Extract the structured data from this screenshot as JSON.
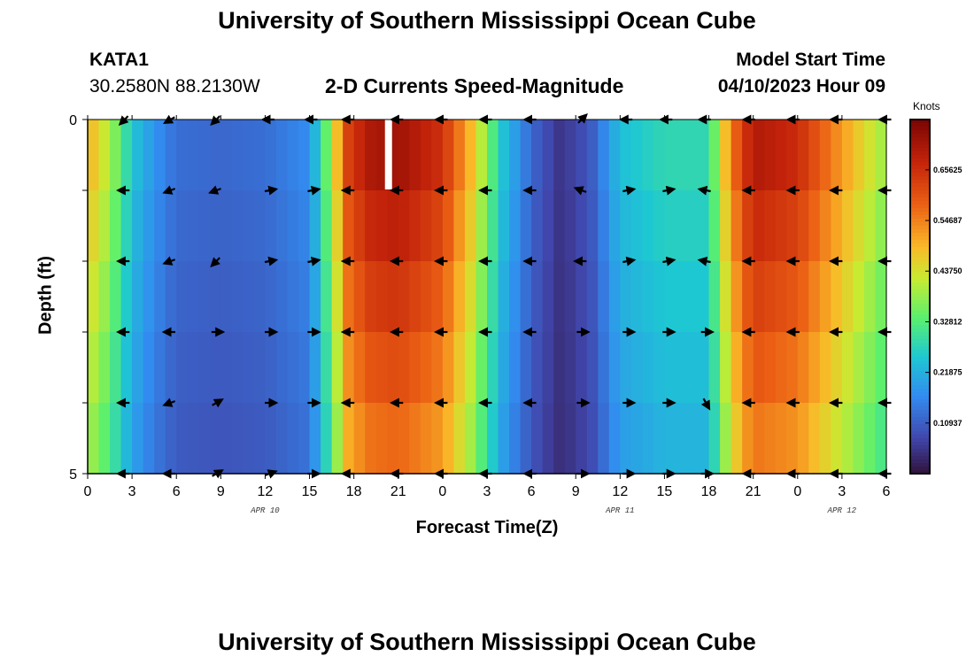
{
  "page": {
    "title": "University of Southern Mississippi Ocean Cube",
    "footer_title": "University of Southern Mississippi Ocean Cube",
    "station": "KATA1",
    "coords": "30.2580N  88.2130W",
    "subtitle": "2-D Currents Speed-Magnitude",
    "model_start_label": "Model Start Time",
    "model_start_value": "04/10/2023 Hour 09"
  },
  "chart_data": {
    "type": "heatmap",
    "title": "2-D Currents Speed-Magnitude",
    "xlabel": "Forecast Time(Z)",
    "ylabel": "Depth (ft)",
    "x_tick_labels": [
      "0",
      "3",
      "6",
      "9",
      "12",
      "15",
      "18",
      "21",
      "0",
      "3",
      "6",
      "9",
      "12",
      "15",
      "18",
      "21",
      "0",
      "3",
      "6"
    ],
    "x_hours": [
      0,
      3,
      6,
      9,
      12,
      15,
      18,
      21,
      24,
      27,
      30,
      33,
      36,
      39,
      42,
      45,
      48,
      51,
      54
    ],
    "xlim": [
      0,
      54
    ],
    "date_labels": [
      {
        "text": "APR 10",
        "hour": 12
      },
      {
        "text": "APR 11",
        "hour": 36
      },
      {
        "text": "APR 12",
        "hour": 51
      }
    ],
    "y_tick_labels": [
      "0",
      "5"
    ],
    "ylim": [
      0,
      5
    ],
    "depth_levels": [
      0,
      1,
      2,
      3,
      4,
      5
    ],
    "colorbar": {
      "unit": "Knots",
      "ticks": [
        0.65625,
        0.54687,
        0.4375,
        0.32812,
        0.21875,
        0.10937
      ],
      "tick_labels": [
        "0.65625",
        "0.54687",
        "0.43750",
        "0.32812",
        "0.21875",
        "0.10937"
      ],
      "range": [
        0,
        0.765
      ]
    },
    "speed_profile": [
      {
        "hour": 0,
        "knots": 0.5
      },
      {
        "hour": 1.5,
        "knots": 0.4
      },
      {
        "hour": 3,
        "knots": 0.25
      },
      {
        "hour": 4.5,
        "knots": 0.18
      },
      {
        "hour": 6,
        "knots": 0.13
      },
      {
        "hour": 9,
        "knots": 0.12
      },
      {
        "hour": 12,
        "knots": 0.13
      },
      {
        "hour": 15,
        "knots": 0.17
      },
      {
        "hour": 16.5,
        "knots": 0.4
      },
      {
        "hour": 17.5,
        "knots": 0.62
      },
      {
        "hour": 19,
        "knots": 0.7
      },
      {
        "hour": 21,
        "knots": 0.72
      },
      {
        "hour": 24,
        "knots": 0.65
      },
      {
        "hour": 26,
        "knots": 0.48
      },
      {
        "hour": 28,
        "knots": 0.25
      },
      {
        "hour": 30,
        "knots": 0.12
      },
      {
        "hour": 32,
        "knots": 0.05
      },
      {
        "hour": 34,
        "knots": 0.1
      },
      {
        "hour": 36,
        "knots": 0.24
      },
      {
        "hour": 39,
        "knots": 0.28
      },
      {
        "hour": 42,
        "knots": 0.28
      },
      {
        "hour": 43.5,
        "knots": 0.55
      },
      {
        "hour": 45,
        "knots": 0.7
      },
      {
        "hour": 48,
        "knots": 0.66
      },
      {
        "hour": 51,
        "knots": 0.52
      },
      {
        "hour": 54,
        "knots": 0.38
      }
    ],
    "vectors": {
      "hours": [
        2.5,
        5.6,
        8.7,
        12.3,
        15.2,
        17.7,
        21,
        24,
        27,
        30,
        33.4,
        36.5,
        39.2,
        41.8,
        44.8,
        47.8,
        50.7,
        54
      ],
      "depths": [
        0,
        1,
        2,
        3,
        4,
        5
      ],
      "directions_deg": [
        [
          225,
          210,
          225,
          180,
          180,
          180,
          180,
          180,
          180,
          180,
          45,
          180,
          180,
          180,
          180,
          180,
          180,
          180
        ],
        [
          180,
          200,
          200,
          10,
          10,
          180,
          180,
          180,
          180,
          180,
          160,
          10,
          10,
          170,
          180,
          180,
          180,
          180
        ],
        [
          180,
          200,
          225,
          10,
          10,
          180,
          180,
          180,
          180,
          180,
          180,
          10,
          10,
          170,
          180,
          180,
          180,
          180
        ],
        [
          180,
          180,
          0,
          0,
          0,
          180,
          180,
          180,
          180,
          180,
          0,
          0,
          0,
          0,
          180,
          180,
          180,
          180
        ],
        [
          180,
          200,
          30,
          0,
          0,
          180,
          180,
          180,
          180,
          180,
          0,
          0,
          0,
          300,
          180,
          180,
          180,
          180
        ],
        [
          180,
          180,
          30,
          20,
          0,
          180,
          180,
          180,
          180,
          180,
          0,
          0,
          0,
          0,
          180,
          180,
          180,
          180
        ]
      ]
    }
  }
}
